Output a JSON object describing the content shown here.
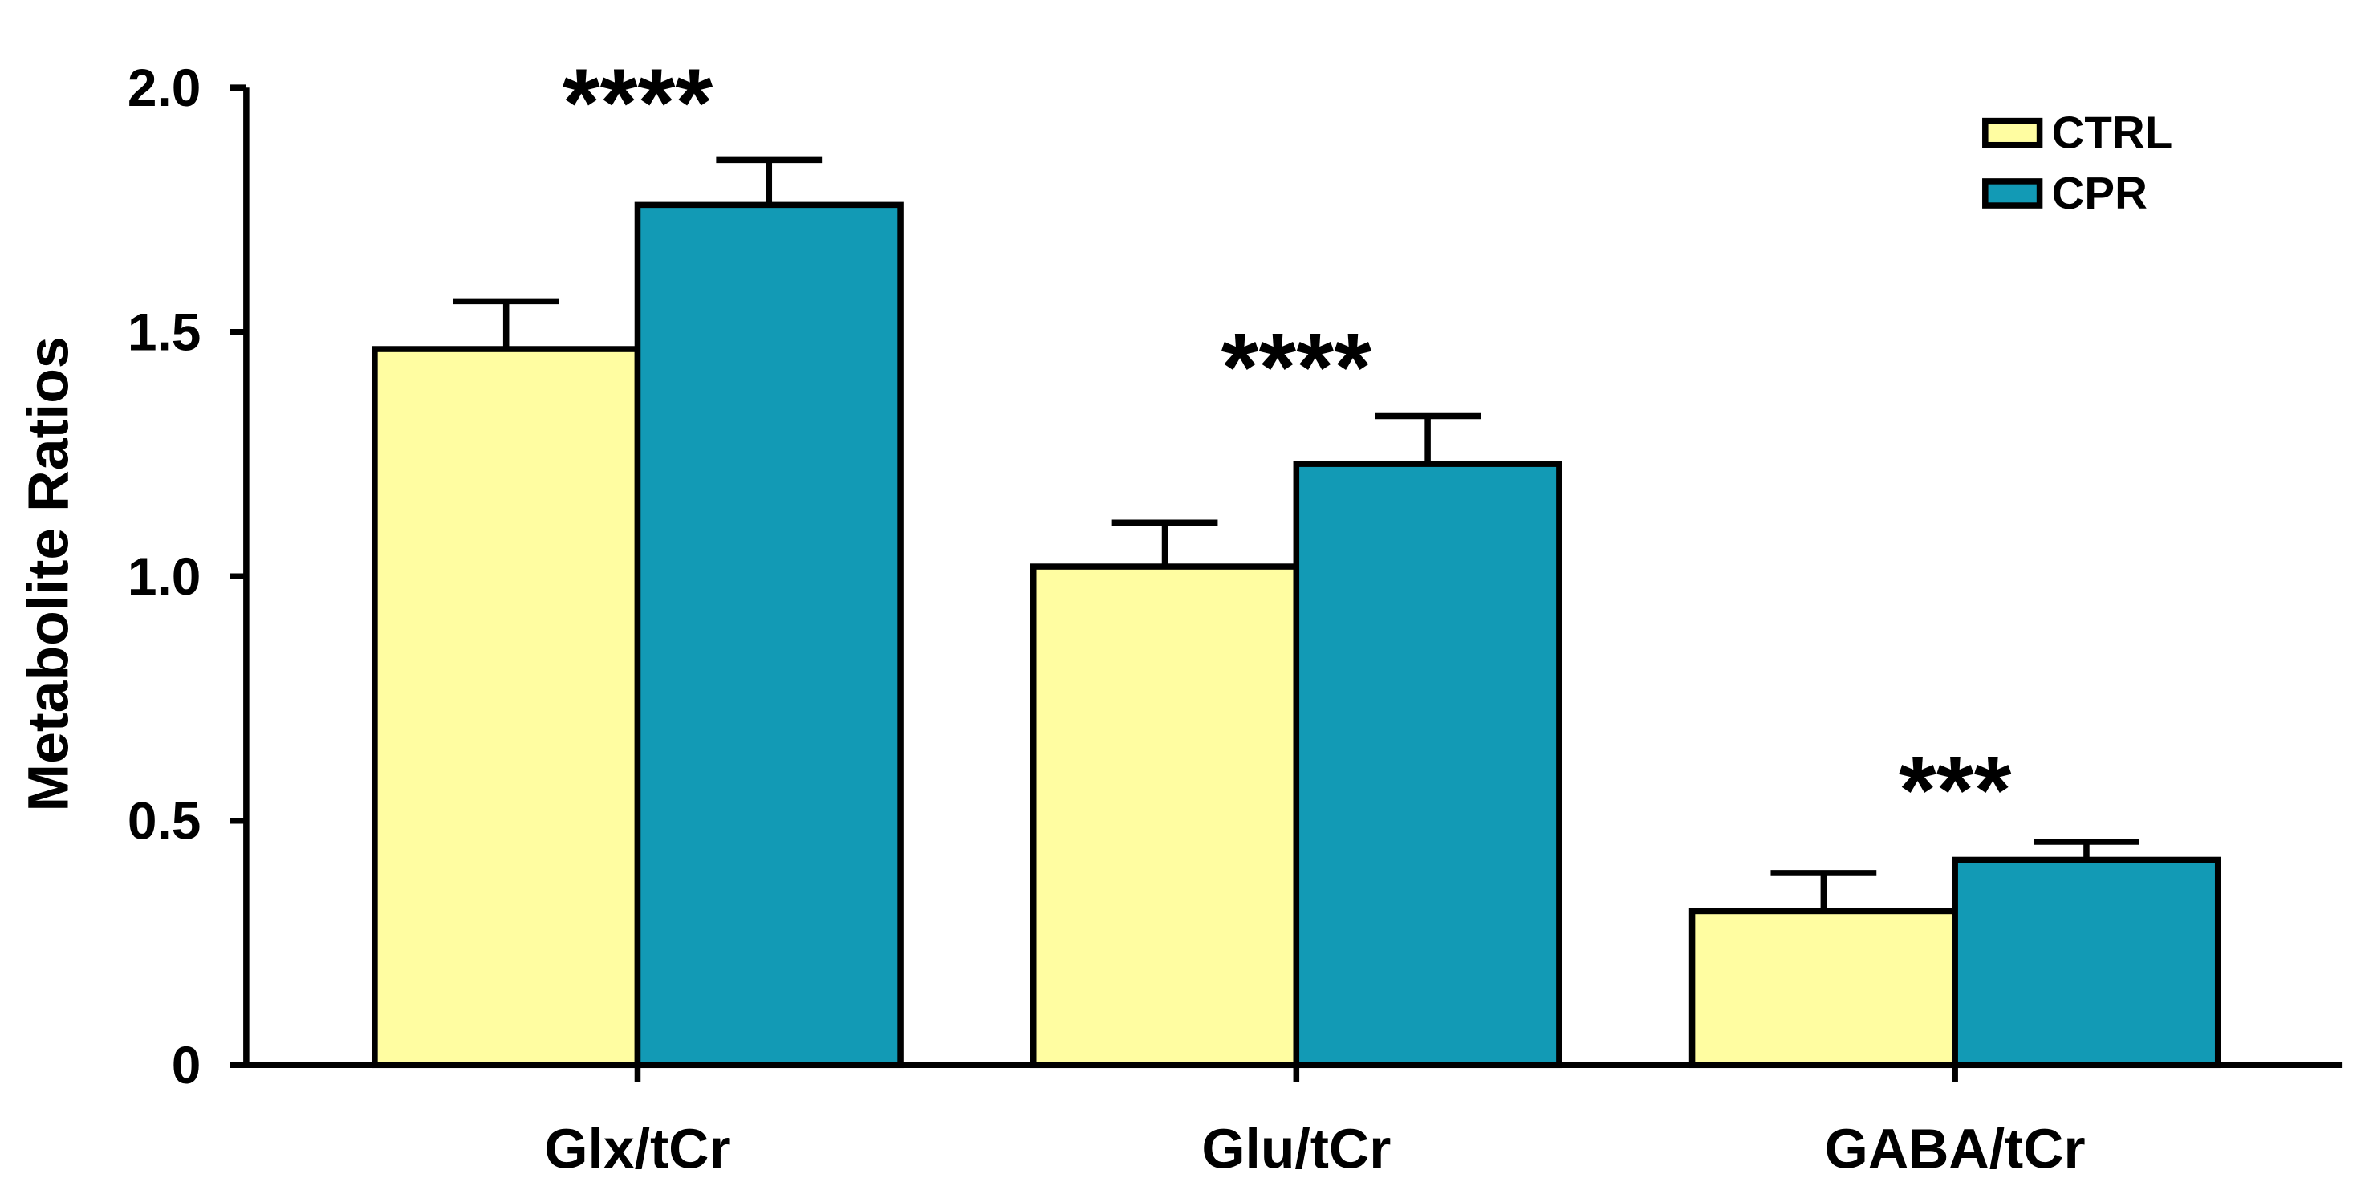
{
  "chart_data": {
    "type": "bar",
    "title": "",
    "xlabel": "",
    "ylabel": "Metabolite Ratios",
    "ylim": [
      0,
      2.0
    ],
    "yticks": [
      "0",
      "0.5",
      "1.0",
      "1.5",
      "2.0"
    ],
    "ytick_values": [
      0,
      0.5,
      1.0,
      1.5,
      2.0
    ],
    "grid": false,
    "legend_position": "top-right",
    "categories": [
      "Glx/tCr",
      "Glu/tCr",
      "GABA/tCr"
    ],
    "series": [
      {
        "name": "CTRL",
        "color": "#FFFDA1",
        "values": [
          1.465,
          1.02,
          0.315
        ],
        "error_upper": [
          1.563,
          1.11,
          0.393
        ]
      },
      {
        "name": "CPR",
        "color": "#129AB5",
        "values": [
          1.76,
          1.23,
          0.42
        ],
        "error_upper": [
          1.852,
          1.328,
          0.457
        ]
      }
    ],
    "annotations": [
      "****",
      "****",
      "***"
    ],
    "annotation_color": "#000000"
  }
}
